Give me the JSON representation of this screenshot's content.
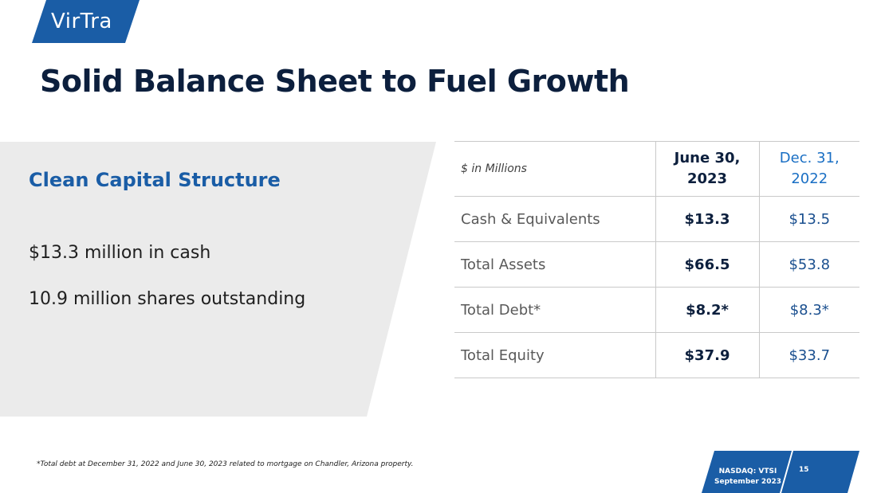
{
  "logo": {
    "text": "VirTra"
  },
  "title": "Solid Balance Sheet to Fuel Growth",
  "panel": {
    "heading": "Clean Capital Structure",
    "lines": [
      "$13.3 million in cash",
      "10.9 million shares outstanding"
    ]
  },
  "table": {
    "header": {
      "label": "$ in Millions",
      "current": [
        "June 30,",
        "2023"
      ],
      "previous": [
        "Dec. 31,",
        "2022"
      ]
    },
    "rows": [
      {
        "label": "Cash & Equivalents",
        "current": "$13.3",
        "previous": "$13.5"
      },
      {
        "label": "Total Assets",
        "current": "$66.5",
        "previous": "$53.8"
      },
      {
        "label": "Total Debt*",
        "current": "$8.2*",
        "previous": "$8.3*"
      },
      {
        "label": "Total Equity",
        "current": "$37.9",
        "previous": "$33.7"
      }
    ]
  },
  "footnote": "*Total debt at December 31, 2022 and June 30, 2023 related to mortgage on Chandler, Arizona property.",
  "footer": {
    "ticker": "NASDAQ: VTSI",
    "date": "September 2023",
    "page": "15"
  },
  "colors": {
    "brand_blue": "#1a5da6",
    "title": "#0c1f3d",
    "panel_grey": "#ebebeb"
  }
}
